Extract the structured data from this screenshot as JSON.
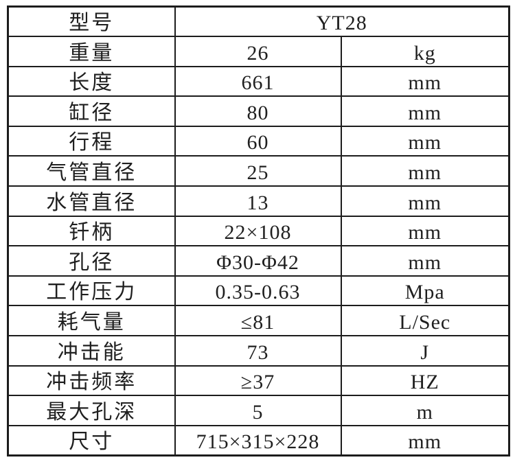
{
  "table": {
    "colors": {
      "border": "#1c1c1c",
      "text": "#1f1f1f",
      "background": "#ffffff"
    },
    "model_row": {
      "label": "型号",
      "value": "YT28"
    },
    "rows": [
      {
        "label": "重量",
        "value": "26",
        "unit": "kg"
      },
      {
        "label": "长度",
        "value": "661",
        "unit": "mm"
      },
      {
        "label": "缸径",
        "value": "80",
        "unit": "mm"
      },
      {
        "label": "行程",
        "value": "60",
        "unit": "mm"
      },
      {
        "label": "气管直径",
        "value": "25",
        "unit": "mm"
      },
      {
        "label": "水管直径",
        "value": "13",
        "unit": "mm"
      },
      {
        "label": "钎柄",
        "value": "22×108",
        "unit": "mm"
      },
      {
        "label": "孔径",
        "value": "Φ30-Φ42",
        "unit": "mm"
      },
      {
        "label": "工作压力",
        "value": "0.35-0.63",
        "unit": "Mpa"
      },
      {
        "label": "耗气量",
        "value": "≤81",
        "unit": "L/Sec"
      },
      {
        "label": "冲击能",
        "value": "73",
        "unit": "J"
      },
      {
        "label": "冲击频率",
        "value": "≥37",
        "unit": "HZ"
      },
      {
        "label": "最大孔深",
        "value": "5",
        "unit": "m"
      },
      {
        "label": "尺寸",
        "value": "715×315×228",
        "unit": "mm"
      }
    ]
  }
}
